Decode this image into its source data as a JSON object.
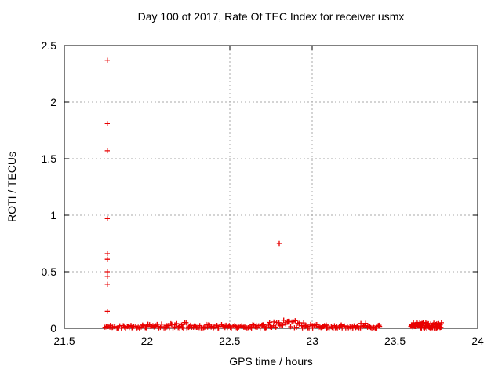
{
  "chart_data": {
    "type": "scatter",
    "title": "Day 100 of 2017, Rate Of TEC Index for receiver usmx",
    "xlabel": "GPS time / hours",
    "ylabel": "ROTI / TECUs",
    "xlim": [
      21.5,
      24
    ],
    "ylim": [
      0,
      2.5
    ],
    "xticks": [
      21.5,
      22,
      22.5,
      23,
      23.5,
      24
    ],
    "xtick_labels": [
      "21.5",
      "22",
      "22.5",
      "23",
      "23.5",
      "24"
    ],
    "yticks": [
      0,
      0.5,
      1,
      1.5,
      2,
      2.5
    ],
    "ytick_labels": [
      "0",
      "0.5",
      "1",
      "1.5",
      "2",
      "2.5"
    ],
    "grid": true,
    "legend": "none",
    "marker": "plus",
    "marker_size": 7,
    "colors": {
      "marker": "#e80000",
      "grid": "#a8a8a8",
      "border": "#000000",
      "background": "#ffffff",
      "text": "#000000"
    },
    "points": [
      [
        21.76,
        2.37
      ],
      [
        21.76,
        1.81
      ],
      [
        21.76,
        1.57
      ],
      [
        21.76,
        0.97
      ],
      [
        21.76,
        0.66
      ],
      [
        21.76,
        0.61
      ],
      [
        21.76,
        0.5
      ],
      [
        21.76,
        0.46
      ],
      [
        21.76,
        0.39
      ],
      [
        21.76,
        0.15
      ],
      [
        22.8,
        0.75
      ]
    ],
    "band_segments": [
      {
        "x_start": 21.745,
        "x_end": 23.41,
        "n": 235,
        "y_base": 0.002,
        "y_spread": 0.03,
        "bumps": [
          {
            "center": 22.2,
            "width": 0.16,
            "amp": 0.02
          },
          {
            "center": 22.85,
            "width": 0.13,
            "amp": 0.045
          },
          {
            "center": 23.33,
            "width": 0.08,
            "amp": 0.014
          }
        ]
      },
      {
        "x_start": 23.595,
        "x_end": 23.78,
        "n": 70,
        "y_base": 0.002,
        "y_spread": 0.052,
        "bumps": []
      }
    ],
    "seed": 42
  }
}
